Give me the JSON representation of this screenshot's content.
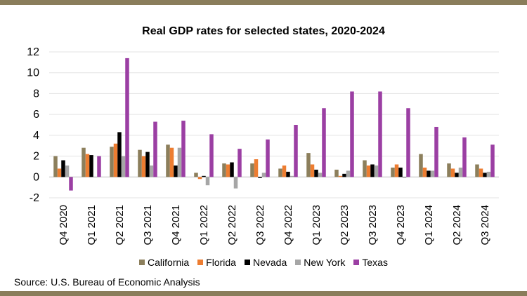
{
  "chart_data": {
    "type": "bar",
    "title": "Real GDP rates for selected states, 2020-2024",
    "xlabel": "",
    "ylabel": "",
    "ylim": [
      -2,
      12
    ],
    "yticks": [
      -2,
      0,
      2,
      4,
      6,
      8,
      10,
      12
    ],
    "grid": true,
    "legend_position": "bottom",
    "categories": [
      "Q4 2020",
      "Q1 2021",
      "Q2 2021",
      "Q3 2021",
      "Q4 2021",
      "Q1 2022",
      "Q2 2022",
      "Q3 2022",
      "Q4 2022",
      "Q1 2023",
      "Q2 2023",
      "Q3 2023",
      "Q4 2023",
      "Q1 2024",
      "Q2 2024",
      "Q3 2024"
    ],
    "series": [
      {
        "name": "California",
        "color": "#8c7f5c",
        "values": [
          2.0,
          2.8,
          2.9,
          2.6,
          3.1,
          0.4,
          1.3,
          1.3,
          0.8,
          2.3,
          0.7,
          1.6,
          0.9,
          2.2,
          1.3,
          1.2
        ]
      },
      {
        "name": "Florida",
        "color": "#ed7d31",
        "values": [
          0.8,
          2.2,
          3.2,
          2.0,
          2.8,
          -0.2,
          1.2,
          1.7,
          1.1,
          1.2,
          0.1,
          1.1,
          1.2,
          0.9,
          0.8,
          0.8
        ]
      },
      {
        "name": "Nevada",
        "color": "#000000",
        "values": [
          1.6,
          2.1,
          4.3,
          2.4,
          1.1,
          0.1,
          1.4,
          -0.1,
          0.5,
          0.7,
          0.3,
          1.2,
          0.9,
          0.6,
          0.4,
          0.4
        ]
      },
      {
        "name": "New York",
        "color": "#a6a6a6",
        "values": [
          1.1,
          0.0,
          2.0,
          1.1,
          2.8,
          -0.8,
          -1.1,
          0.4,
          0.1,
          0.4,
          0.6,
          1.1,
          -0.1,
          0.6,
          0.9,
          0.5
        ]
      },
      {
        "name": "Texas",
        "color": "#9b3fa3",
        "values": [
          -1.3,
          2.0,
          11.4,
          5.3,
          5.4,
          4.1,
          2.7,
          3.6,
          5.0,
          6.6,
          8.2,
          8.2,
          6.6,
          4.8,
          3.8,
          3.1
        ]
      }
    ]
  },
  "source": "Source: U.S. Bureau of Economic Analysis"
}
